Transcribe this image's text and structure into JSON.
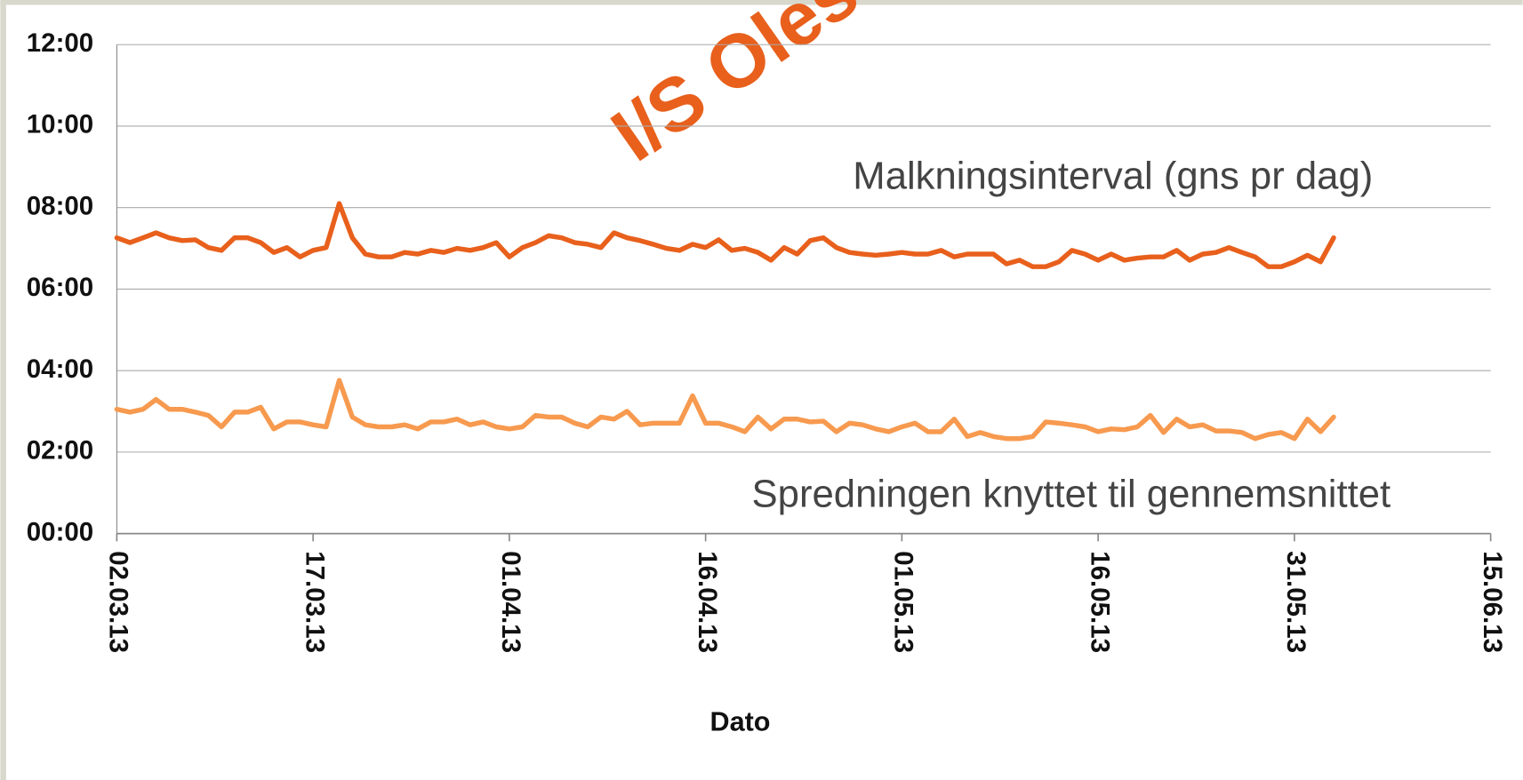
{
  "chart_data": {
    "type": "line",
    "watermark": "I/S Oles",
    "xlabel": "Dato",
    "annotations": [
      "Malkningsinterval (gns pr dag)",
      "Spredningen knyttet til gennemsnittet"
    ],
    "grid": true,
    "xlim": [
      "2013-03-02",
      "2013-06-15"
    ],
    "xticks": [
      {
        "value": "2013-03-02",
        "label": "02.03.13"
      },
      {
        "value": "2013-03-17",
        "label": "17.03.13"
      },
      {
        "value": "2013-04-01",
        "label": "01.04.13"
      },
      {
        "value": "2013-04-16",
        "label": "16.04.13"
      },
      {
        "value": "2013-05-01",
        "label": "01.05.13"
      },
      {
        "value": "2013-05-16",
        "label": "16.05.13"
      },
      {
        "value": "2013-05-31",
        "label": "31.05.13"
      },
      {
        "value": "2013-06-15",
        "label": "15.06.13"
      }
    ],
    "ylim": [
      0,
      12
    ],
    "yticks": [
      {
        "value": 0,
        "label": "00:00"
      },
      {
        "value": 2,
        "label": "02:00"
      },
      {
        "value": 4,
        "label": "04:00"
      },
      {
        "value": 6,
        "label": "06:00"
      },
      {
        "value": 8,
        "label": "08:00"
      },
      {
        "value": 10,
        "label": "10:00"
      },
      {
        "value": 12,
        "label": "12:00"
      }
    ],
    "x": [
      "2013-03-02",
      "2013-03-03",
      "2013-03-04",
      "2013-03-05",
      "2013-03-06",
      "2013-03-07",
      "2013-03-08",
      "2013-03-09",
      "2013-03-10",
      "2013-03-11",
      "2013-03-12",
      "2013-03-13",
      "2013-03-14",
      "2013-03-15",
      "2013-03-16",
      "2013-03-17",
      "2013-03-18",
      "2013-03-19",
      "2013-03-20",
      "2013-03-21",
      "2013-03-22",
      "2013-03-23",
      "2013-03-24",
      "2013-03-25",
      "2013-03-26",
      "2013-03-27",
      "2013-03-28",
      "2013-03-29",
      "2013-03-30",
      "2013-03-31",
      "2013-04-01",
      "2013-04-02",
      "2013-04-03",
      "2013-04-04",
      "2013-04-05",
      "2013-04-06",
      "2013-04-07",
      "2013-04-08",
      "2013-04-09",
      "2013-04-10",
      "2013-04-11",
      "2013-04-12",
      "2013-04-13",
      "2013-04-14",
      "2013-04-15",
      "2013-04-16",
      "2013-04-17",
      "2013-04-18",
      "2013-04-19",
      "2013-04-20",
      "2013-04-21",
      "2013-04-22",
      "2013-04-23",
      "2013-04-24",
      "2013-04-25",
      "2013-04-26",
      "2013-04-27",
      "2013-04-28",
      "2013-04-29",
      "2013-04-30",
      "2013-05-01",
      "2013-05-02",
      "2013-05-03",
      "2013-05-04",
      "2013-05-05",
      "2013-05-06",
      "2013-05-07",
      "2013-05-08",
      "2013-05-09",
      "2013-05-10",
      "2013-05-11",
      "2013-05-12",
      "2013-05-13",
      "2013-05-14",
      "2013-05-15",
      "2013-05-16",
      "2013-05-17",
      "2013-05-18",
      "2013-05-19",
      "2013-05-20",
      "2013-05-21",
      "2013-05-22",
      "2013-05-23",
      "2013-05-24",
      "2013-05-25",
      "2013-05-26",
      "2013-05-27",
      "2013-05-28",
      "2013-05-29",
      "2013-05-30",
      "2013-05-31",
      "2013-06-01",
      "2013-06-02",
      "2013-06-03"
    ],
    "series": [
      {
        "color": "#e8601c",
        "values": [
          7.26,
          7.14,
          7.26,
          7.38,
          7.26,
          7.19,
          7.21,
          7.02,
          6.95,
          7.26,
          7.26,
          7.14,
          6.9,
          7.02,
          6.79,
          6.95,
          7.02,
          8.1,
          7.26,
          6.86,
          6.79,
          6.79,
          6.9,
          6.86,
          6.95,
          6.9,
          7.0,
          6.95,
          7.02,
          7.14,
          6.79,
          7.02,
          7.14,
          7.31,
          7.26,
          7.14,
          7.1,
          7.02,
          7.38,
          7.26,
          7.19,
          7.1,
          7.0,
          6.95,
          7.1,
          7.02,
          7.21,
          6.95,
          7.0,
          6.9,
          6.71,
          7.02,
          6.86,
          7.19,
          7.26,
          7.02,
          6.9,
          6.86,
          6.83,
          6.86,
          6.9,
          6.86,
          6.86,
          6.95,
          6.79,
          6.86,
          6.86,
          6.86,
          6.62,
          6.71,
          6.55,
          6.55,
          6.67,
          6.95,
          6.86,
          6.71,
          6.86,
          6.71,
          6.76,
          6.79,
          6.79,
          6.95,
          6.71,
          6.86,
          6.9,
          7.02,
          6.9,
          6.79,
          6.55,
          6.55,
          6.67,
          6.83,
          6.67,
          7.26
        ]
      },
      {
        "color": "#f79a4f",
        "values": [
          3.05,
          2.98,
          3.05,
          3.29,
          3.05,
          3.05,
          2.98,
          2.9,
          2.62,
          2.98,
          2.98,
          3.1,
          2.57,
          2.74,
          2.74,
          2.67,
          2.62,
          3.76,
          2.86,
          2.67,
          2.62,
          2.62,
          2.67,
          2.57,
          2.74,
          2.74,
          2.81,
          2.67,
          2.74,
          2.62,
          2.57,
          2.62,
          2.9,
          2.86,
          2.86,
          2.71,
          2.62,
          2.86,
          2.81,
          3.0,
          2.67,
          2.71,
          2.71,
          2.71,
          3.38,
          2.71,
          2.71,
          2.62,
          2.5,
          2.86,
          2.57,
          2.81,
          2.81,
          2.74,
          2.76,
          2.5,
          2.71,
          2.67,
          2.57,
          2.5,
          2.62,
          2.71,
          2.5,
          2.5,
          2.81,
          2.38,
          2.48,
          2.38,
          2.33,
          2.33,
          2.38,
          2.74,
          2.71,
          2.67,
          2.62,
          2.5,
          2.57,
          2.55,
          2.62,
          2.9,
          2.48,
          2.81,
          2.62,
          2.67,
          2.52,
          2.52,
          2.48,
          2.33,
          2.43,
          2.48,
          2.33,
          2.81,
          2.5,
          2.86
        ]
      }
    ]
  }
}
